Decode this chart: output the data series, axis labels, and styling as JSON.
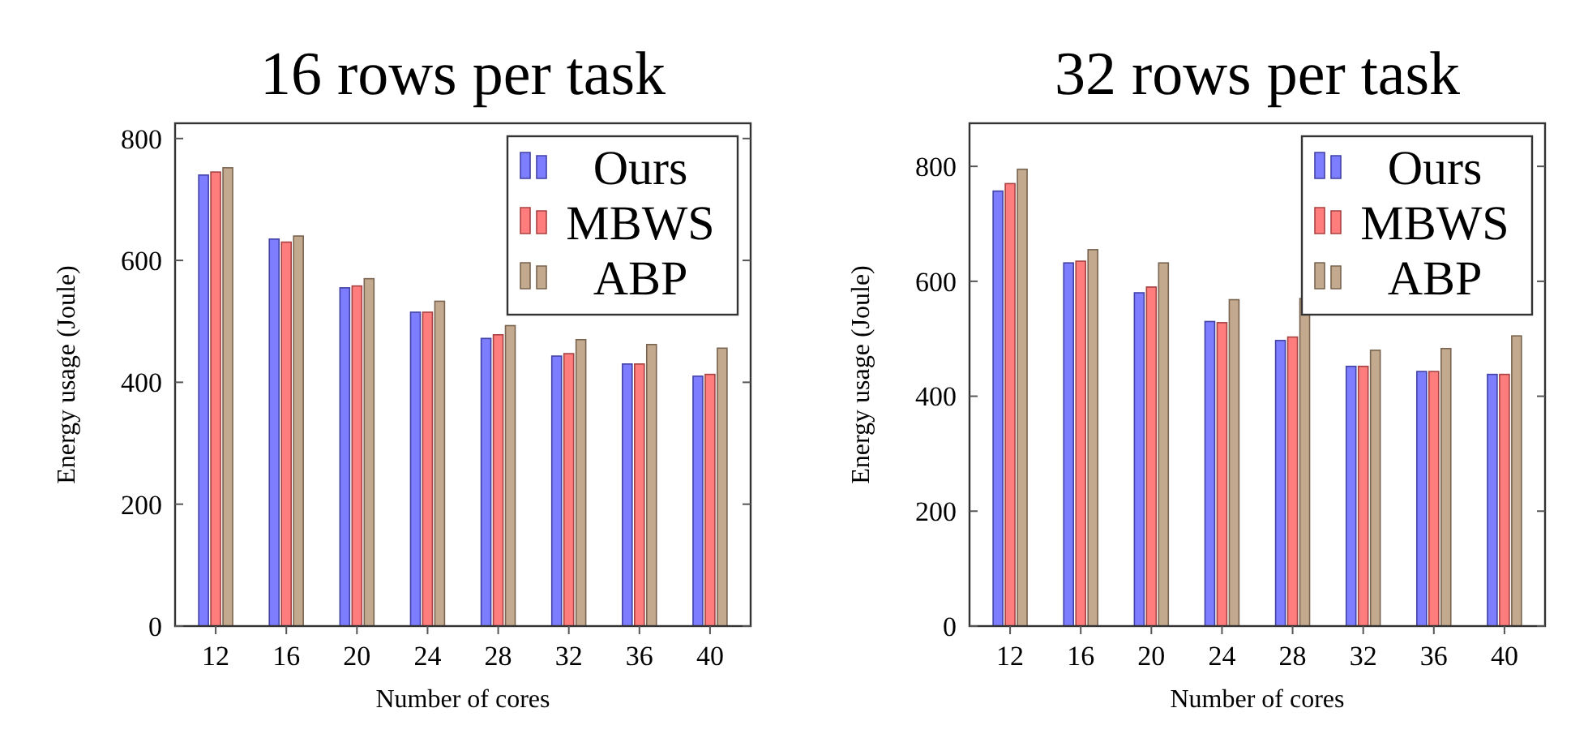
{
  "chart_data": [
    {
      "type": "bar",
      "title": "16 rows per task",
      "xlabel": "Number of cores",
      "ylabel": "Energy usage (Joule)",
      "categories": [
        "12",
        "16",
        "20",
        "24",
        "28",
        "32",
        "36",
        "40"
      ],
      "series": [
        {
          "name": "Ours",
          "color": "#6666ff",
          "values": [
            740,
            635,
            555,
            515,
            472,
            443,
            430,
            410
          ]
        },
        {
          "name": "MBWS",
          "color": "#ff6666",
          "values": [
            745,
            630,
            558,
            515,
            478,
            447,
            430,
            413
          ]
        },
        {
          "name": "ABP",
          "color": "#b89a7a",
          "values": [
            752,
            640,
            570,
            533,
            493,
            470,
            462,
            456
          ]
        }
      ],
      "ylim": [
        0,
        825
      ],
      "yticks": [
        0,
        200,
        400,
        600,
        800
      ],
      "legend": "top right",
      "grid": false
    },
    {
      "type": "bar",
      "title": "32 rows per task",
      "xlabel": "Number of cores",
      "ylabel": "Energy usage (Joule)",
      "categories": [
        "12",
        "16",
        "20",
        "24",
        "28",
        "32",
        "36",
        "40"
      ],
      "series": [
        {
          "name": "Ours",
          "color": "#6666ff",
          "values": [
            757,
            632,
            580,
            530,
            497,
            452,
            443,
            438
          ]
        },
        {
          "name": "MBWS",
          "color": "#ff6666",
          "values": [
            770,
            635,
            590,
            528,
            503,
            452,
            443,
            438
          ]
        },
        {
          "name": "ABP",
          "color": "#b89a7a",
          "values": [
            795,
            655,
            632,
            568,
            570,
            480,
            483,
            505
          ]
        }
      ],
      "ylim": [
        0,
        875
      ],
      "yticks": [
        0,
        200,
        400,
        600,
        800
      ],
      "legend": "top right",
      "grid": false
    }
  ]
}
